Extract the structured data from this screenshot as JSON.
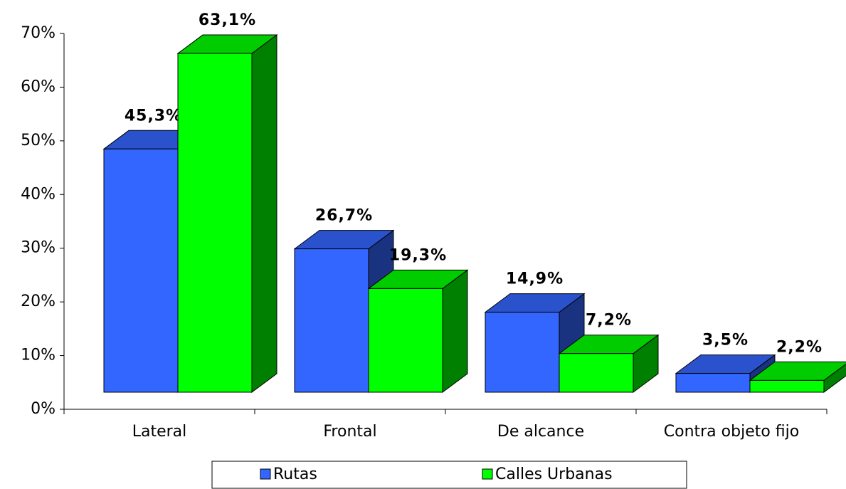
{
  "chart_data": {
    "type": "bar3d",
    "categories": [
      "Lateral",
      "Frontal",
      "De alcance",
      "Contra objeto fijo"
    ],
    "series": [
      {
        "name": "Rutas",
        "color": "#3366ff",
        "values": [
          45.3,
          26.7,
          14.9,
          3.5
        ],
        "value_labels": [
          "45,3%",
          "26,7%",
          "14,9%",
          "3,5%"
        ]
      },
      {
        "name": "Calles Urbanas",
        "color": "#00ff00",
        "values": [
          63.1,
          19.3,
          7.2,
          2.2
        ],
        "value_labels": [
          "63,1%",
          "19,3%",
          "7,2%",
          "2,2%"
        ]
      }
    ],
    "ylim": [
      0,
      70
    ],
    "yticks": [
      {
        "value": 0,
        "label": "0%"
      },
      {
        "value": 10,
        "label": "10%"
      },
      {
        "value": 20,
        "label": "20%"
      },
      {
        "value": 30,
        "label": "30%"
      },
      {
        "value": 40,
        "label": "40%"
      },
      {
        "value": 50,
        "label": "50%"
      },
      {
        "value": 60,
        "label": "60%"
      },
      {
        "value": 70,
        "label": "70%"
      }
    ],
    "legend": "bottom"
  }
}
